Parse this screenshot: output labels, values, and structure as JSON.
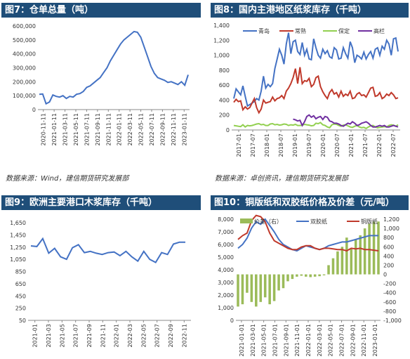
{
  "panels": {
    "p7": {
      "title": "图7：仓单总量（吨）",
      "source": "数据来源：Wind，建信期货研究发展部"
    },
    "p8": {
      "title": "图8：国内主港地区纸浆库存（千吨）",
      "source": "数据来源：卓创资讯，建信期货研究发展部"
    },
    "p9": {
      "title": "图9：欧洲主要港口木浆库存（千吨）"
    },
    "p10": {
      "title": "图10：铜版纸和双胶纸价格及价差（元/吨）"
    }
  },
  "colors": {
    "header_bg": "#1f4e79",
    "blue": "#4472c4",
    "red": "#c0392b",
    "green": "#92d050",
    "purple": "#7030a0",
    "bar_green": "#9bbb59"
  },
  "chart_data": [
    {
      "id": "p7",
      "type": "line",
      "ylim": [
        0,
        600000
      ],
      "yticks": [
        0,
        100000,
        200000,
        300000,
        400000,
        500000,
        600000
      ],
      "ytick_labels": [
        "0",
        "100,000",
        "200,000",
        "300,000",
        "400,000",
        "500,000",
        "600,000"
      ],
      "xtick_labels": [
        "2020-11-11",
        "2021-01-11",
        "2021-03-11",
        "2021-05-11",
        "2021-07-11",
        "2021-09-11",
        "2021-11-11",
        "2022-01-11",
        "2022-03-11",
        "2022-05-11",
        "2022-07-11",
        "2022-09-11",
        "2022-11-11",
        "2023-01-11"
      ],
      "series": [
        {
          "values": [
            110000,
            112000,
            42000,
            55000,
            105000,
            95000,
            90000,
            100000,
            80000,
            95000,
            90000,
            110000,
            115000,
            130000,
            160000,
            170000,
            190000,
            210000,
            230000,
            265000,
            300000,
            350000,
            390000,
            430000,
            470000,
            500000,
            520000,
            540000,
            560000,
            555000,
            520000,
            450000,
            380000,
            310000,
            260000,
            230000,
            220000,
            210000,
            195000,
            200000,
            190000,
            180000,
            200000,
            175000,
            250000
          ]
        }
      ]
    },
    {
      "id": "p8",
      "type": "line",
      "ylim": [
        0,
        1400
      ],
      "yticks": [
        0,
        200,
        400,
        600,
        800,
        1000,
        1200,
        1400
      ],
      "ytick_labels": [
        "0",
        "200",
        "400",
        "600",
        "800",
        "1,000",
        "1,200",
        "1,400"
      ],
      "xtick_labels": [
        "2017-01",
        "2017-07",
        "2018-01",
        "2018-07",
        "2019-01",
        "2019-07",
        "2020-01",
        "2020-07",
        "2021-01",
        "2021-07",
        "2022-01",
        "2022-07"
      ],
      "x_count": 73,
      "series": [
        {
          "name": "青岛",
          "start": 0,
          "values": [
            420,
            550,
            510,
            470,
            590,
            450,
            320,
            340,
            360,
            380,
            420,
            400,
            520,
            720,
            560,
            610,
            580,
            620,
            820,
            950,
            1080,
            1000,
            880,
            1150,
            1300,
            1020,
            1180,
            1200,
            1050,
            1010,
            1170,
            1000,
            1080,
            950,
            940,
            1220,
            1100,
            1000,
            960,
            1080,
            1020,
            1060,
            980,
            960,
            1100,
            1070,
            950,
            960,
            1100,
            1020,
            960,
            1180,
            1100,
            900,
            1000,
            980,
            950,
            1040,
            950,
            1010,
            1050,
            960,
            1080,
            1100,
            1000,
            1120,
            1080,
            1200,
            1150,
            1000,
            1220,
            1230,
            1050
          ]
        },
        {
          "name": "常熟",
          "start": 0,
          "values": [
            370,
            410,
            380,
            390,
            270,
            310,
            280,
            300,
            360,
            420,
            300,
            230,
            280,
            400,
            360,
            370,
            380,
            440,
            390,
            420,
            430,
            460,
            420,
            520,
            560,
            620,
            700,
            820,
            620,
            840,
            620,
            660,
            650,
            690,
            580,
            610,
            700,
            720,
            580,
            510,
            460,
            420,
            500,
            540,
            480,
            500,
            440,
            520,
            450,
            480,
            460,
            520,
            420,
            430,
            480,
            500,
            460,
            470,
            440,
            500,
            560,
            570,
            450,
            460,
            500,
            420,
            440,
            480,
            460,
            500,
            470,
            420,
            430
          ]
        },
        {
          "name": "保定",
          "start": 0,
          "values": [
            60,
            55,
            50,
            45,
            70,
            40,
            60,
            55,
            60,
            70,
            80,
            85,
            70,
            75,
            60,
            60,
            80,
            85,
            70,
            75,
            65,
            70,
            80,
            75,
            60,
            70,
            65,
            75,
            60,
            60,
            65,
            75,
            70,
            65,
            55,
            60,
            90,
            85,
            100,
            70,
            60,
            40,
            30,
            70,
            80,
            75,
            60,
            50,
            65,
            70,
            55,
            40,
            35,
            50,
            60,
            40,
            30,
            35,
            20,
            40,
            55,
            60,
            40,
            30,
            35,
            40,
            45,
            40,
            60,
            70,
            65,
            50,
            70
          ]
        },
        {
          "name": "高栏",
          "start": 26,
          "values": [
            145,
            135,
            120,
            130,
            60,
            110,
            180,
            200,
            170,
            190,
            150,
            170,
            180,
            140,
            180,
            170,
            120,
            110,
            90,
            90,
            80,
            60,
            50,
            70,
            90,
            80,
            110,
            90,
            60,
            70,
            90,
            100,
            110,
            90,
            60,
            40,
            40,
            50,
            60,
            50,
            60,
            40,
            40,
            50,
            60,
            50,
            40
          ]
        }
      ]
    },
    {
      "id": "p9",
      "type": "line",
      "ylim": [
        50,
        1650
      ],
      "yticks": [
        50,
        250,
        450,
        650,
        850,
        1050,
        1250,
        1450,
        1650
      ],
      "ytick_labels": [
        "50",
        "250",
        "450",
        "650",
        "850",
        "1,050",
        "1,250",
        "1,450",
        "1,650"
      ],
      "xtick_labels": [
        "2021-01",
        "2021-03",
        "2021-05",
        "2021-07",
        "2021-09",
        "2021-11",
        "2022-01",
        "2022-03",
        "2022-05",
        "2022-07",
        "2022-09",
        "2022-11"
      ],
      "series": [
        {
          "values": [
            1270,
            1260,
            1390,
            1150,
            1230,
            1090,
            1050,
            1240,
            1290,
            1160,
            1180,
            1150,
            1130,
            1160,
            1170,
            1110,
            1180,
            1090,
            1020,
            1180,
            1050,
            1000,
            1160,
            1130,
            1300,
            1330,
            1330
          ]
        }
      ]
    },
    {
      "id": "p10",
      "type": "line+bar",
      "left_ylim": [
        0,
        8000
      ],
      "left_yticks": [
        0,
        1000,
        2000,
        3000,
        4000,
        5000,
        6000,
        7000,
        8000
      ],
      "left_ytick_labels": [
        "0",
        "1,000",
        "2,000",
        "3,000",
        "4,000",
        "5,000",
        "6,000",
        "7,000",
        "8,000"
      ],
      "right_ylim": [
        -1000,
        1200
      ],
      "right_yticks": [
        -1000,
        -800,
        -600,
        -400,
        -200,
        0,
        200,
        400,
        600,
        800,
        1000,
        1200
      ],
      "right_ytick_labels": [
        "-1,000",
        "-800",
        "-600",
        "-400",
        "-200",
        "0",
        "200",
        "400",
        "600",
        "800",
        "1,000",
        "1,200"
      ],
      "xtick_labels": [
        "2021-01-01",
        "2021-03-01",
        "2021-05-01",
        "2021-07-01",
        "2021-09-01",
        "2021-11-01",
        "2022-01-01",
        "2022-03-01",
        "2022-05-01",
        "2022-07-01",
        "2022-09-01",
        "2022-11-01",
        "2023-01-01"
      ],
      "series": [
        {
          "name": "价差（右）",
          "type": "bar",
          "axis": "right",
          "values": [
            -700,
            -650,
            -400,
            -600,
            -700,
            -600,
            -500,
            -650,
            -580,
            -350,
            -300,
            -150,
            -100,
            -50,
            -30,
            -50,
            -60,
            -50,
            -40,
            -20,
            200,
            350,
            500,
            600,
            800,
            550,
            750,
            850,
            1000,
            1100,
            1150,
            1150
          ]
        },
        {
          "name": "双胶纸",
          "type": "line",
          "axis": "left",
          "values": [
            5700,
            6000,
            6500,
            7300,
            7800,
            7600,
            8000,
            7500,
            7000,
            6400,
            6000,
            5800,
            5600,
            5500,
            5700,
            5900,
            5800,
            5700,
            5600,
            5700,
            5900,
            6000,
            6100,
            6200,
            6200,
            6300,
            6400,
            6500,
            6600,
            6700,
            6700,
            6700
          ]
        },
        {
          "name": "铜版纸",
          "type": "line",
          "axis": "left",
          "values": [
            6400,
            6700,
            6900,
            7900,
            8300,
            8200,
            7800,
            6900,
            6300,
            6100,
            5900,
            5700,
            5600,
            5600,
            5800,
            5900,
            5900,
            5700,
            5600,
            5700,
            5700,
            5650,
            5600,
            5600,
            5500,
            5700,
            5650,
            5700,
            5600,
            5600,
            5550,
            5500
          ]
        }
      ]
    }
  ]
}
